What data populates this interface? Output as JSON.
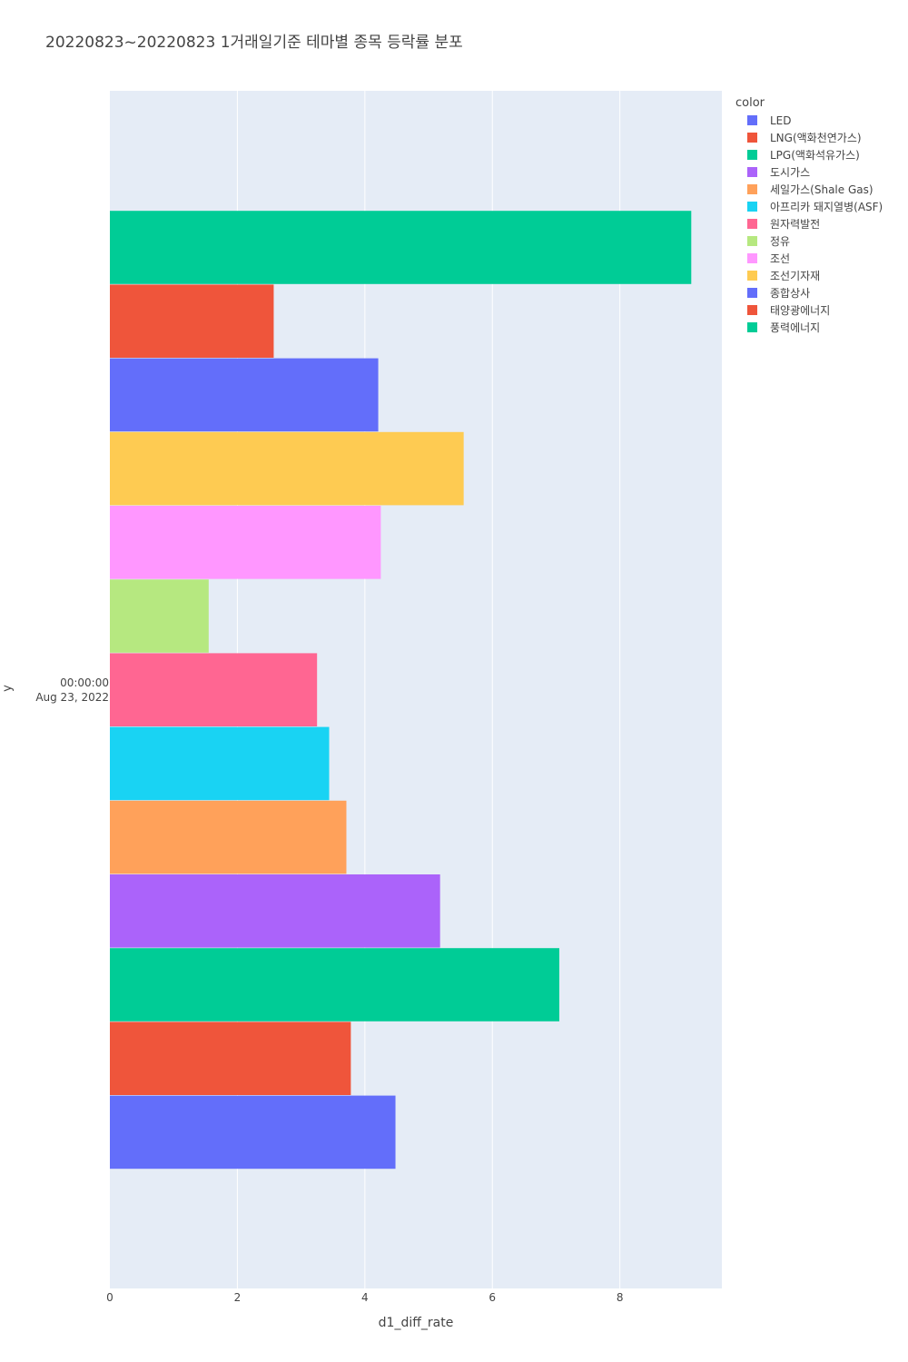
{
  "chart_data": {
    "type": "bar",
    "orientation": "horizontal",
    "title": "20220823~20220823 1거래일기준 테마별 종목 등락률 분포",
    "xlabel": "d1_diff_rate",
    "ylabel": "y",
    "y_category_label": [
      "00:00:00",
      "Aug 23, 2022"
    ],
    "xlim": [
      0,
      9.6
    ],
    "x_ticks": [
      "0",
      "2",
      "4",
      "6",
      "8"
    ],
    "legend_title": "color",
    "legend_position": "top-right",
    "grid": true,
    "series": [
      {
        "name": "LED",
        "value": 4.48,
        "color": "#636efa"
      },
      {
        "name": "LNG(액화천연가스)",
        "value": 3.78,
        "color": "#EF553B"
      },
      {
        "name": "LPG(액화석유가스)",
        "value": 7.05,
        "color": "#00cc96"
      },
      {
        "name": "도시가스",
        "value": 5.18,
        "color": "#ab63fa"
      },
      {
        "name": "세일가스(Shale Gas)",
        "value": 3.71,
        "color": "#FFA15A"
      },
      {
        "name": "아프리카 돼지열병(ASF)",
        "value": 3.44,
        "color": "#19d3f3"
      },
      {
        "name": "원자력발전",
        "value": 3.25,
        "color": "#FF6692"
      },
      {
        "name": "정유",
        "value": 1.55,
        "color": "#B6E880"
      },
      {
        "name": "조선",
        "value": 4.25,
        "color": "#FF97FF"
      },
      {
        "name": "조선기자재",
        "value": 5.55,
        "color": "#FECB52"
      },
      {
        "name": "종합상사",
        "value": 4.21,
        "color": "#636efa"
      },
      {
        "name": "태양광에너지",
        "value": 2.57,
        "color": "#EF553B"
      },
      {
        "name": "풍력에너지",
        "value": 9.12,
        "color": "#00cc96"
      }
    ]
  }
}
